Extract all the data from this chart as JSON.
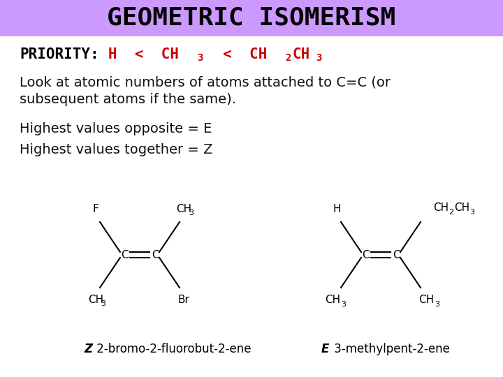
{
  "title": "GEOMETRIC ISOMERISM",
  "title_bg": "#cc99ff",
  "title_color": "#000000",
  "body_bg": "#ffffff",
  "priority_color": "#cc0000",
  "line1": "Look at atomic numbers of atoms attached to C=C (or",
  "line2": "subsequent atoms if the same).",
  "line3": "Highest values opposite = E",
  "line4": "Highest values together = Z",
  "caption1_italic": "Z",
  "caption1_text": " 2-bromo-2-fluorobut-2-ene",
  "caption2_italic": "E",
  "caption2_text": " 3-methylpent-2-ene"
}
